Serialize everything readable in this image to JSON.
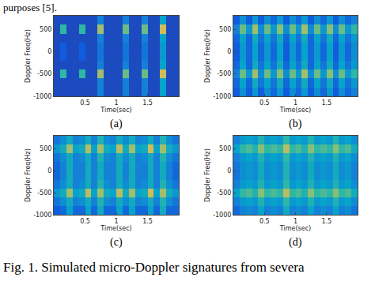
{
  "page": {
    "text_above": "purposes [5].",
    "caption": "Fig. 1. Simulated micro-Doppler signatures from severa"
  },
  "chart_data": [
    {
      "type": "heatmap",
      "title": "(a)",
      "x_label": "Time(sec)",
      "y_label": "Doppler Freq(Hz)",
      "x": [
        0.05,
        0.15,
        0.25,
        0.35,
        0.45,
        0.55,
        0.65,
        0.75,
        0.85,
        0.95,
        1.05,
        1.15,
        1.25,
        1.35,
        1.45,
        1.55,
        1.65,
        1.75,
        1.85,
        1.95
      ],
      "y": [
        -900,
        -700,
        -500,
        -300,
        -100,
        100,
        300,
        500,
        700
      ],
      "z": [
        [
          0.1,
          0.1,
          0.1,
          0.1,
          0.1,
          0.1,
          0.1,
          0.3,
          0.1,
          0.1,
          0.1,
          0.3,
          0.1,
          0.1,
          0.3,
          0.1,
          0.1,
          0.45,
          0.1,
          0.1
        ],
        [
          0.1,
          0.1,
          0.1,
          0.1,
          0.1,
          0.1,
          0.1,
          0.3,
          0.1,
          0.1,
          0.1,
          0.3,
          0.1,
          0.1,
          0.3,
          0.1,
          0.1,
          0.45,
          0.1,
          0.1
        ],
        [
          0.1,
          0.6,
          0.1,
          0.1,
          0.6,
          0.1,
          0.1,
          0.8,
          0.1,
          0.1,
          0.1,
          0.7,
          0.1,
          0.1,
          0.7,
          0.1,
          0.1,
          0.9,
          0.1,
          0.1
        ],
        [
          0.1,
          0.1,
          0.1,
          0.1,
          0.1,
          0.1,
          0.1,
          0.3,
          0.1,
          0.1,
          0.1,
          0.3,
          0.1,
          0.1,
          0.3,
          0.1,
          0.1,
          0.45,
          0.1,
          0.1
        ],
        [
          0.1,
          0.15,
          0.1,
          0.1,
          0.15,
          0.1,
          0.1,
          0.25,
          0.1,
          0.1,
          0.1,
          0.25,
          0.1,
          0.1,
          0.25,
          0.1,
          0.1,
          0.4,
          0.1,
          0.1
        ],
        [
          0.1,
          0.15,
          0.1,
          0.1,
          0.15,
          0.1,
          0.1,
          0.25,
          0.1,
          0.1,
          0.1,
          0.25,
          0.1,
          0.1,
          0.25,
          0.1,
          0.1,
          0.4,
          0.1,
          0.1
        ],
        [
          0.1,
          0.1,
          0.1,
          0.1,
          0.1,
          0.1,
          0.1,
          0.3,
          0.1,
          0.1,
          0.1,
          0.3,
          0.1,
          0.1,
          0.3,
          0.1,
          0.1,
          0.45,
          0.1,
          0.1
        ],
        [
          0.1,
          0.6,
          0.1,
          0.1,
          0.6,
          0.1,
          0.1,
          0.8,
          0.1,
          0.1,
          0.1,
          0.7,
          0.1,
          0.1,
          0.7,
          0.1,
          0.1,
          0.9,
          0.1,
          0.1
        ],
        [
          0.1,
          0.1,
          0.1,
          0.1,
          0.1,
          0.1,
          0.1,
          0.3,
          0.1,
          0.1,
          0.1,
          0.3,
          0.1,
          0.1,
          0.3,
          0.1,
          0.1,
          0.45,
          0.1,
          0.1
        ]
      ],
      "zlim": [
        0,
        1
      ],
      "xlim": [
        0,
        2
      ],
      "ylim": [
        -1000,
        800
      ],
      "xticks": [
        0.5,
        1,
        1.5
      ],
      "yticks": [
        -1000,
        -500,
        0,
        500
      ]
    },
    {
      "type": "heatmap",
      "title": "(b)",
      "x_label": "Time(sec)",
      "y_label": "Doppler Freq(Hz)",
      "x": [
        0.05,
        0.15,
        0.25,
        0.35,
        0.45,
        0.55,
        0.65,
        0.75,
        0.85,
        0.95,
        1.05,
        1.15,
        1.25,
        1.35,
        1.45,
        1.55,
        1.65,
        1.75,
        1.85,
        1.95
      ],
      "y": [
        -900,
        -700,
        -500,
        -300,
        -100,
        100,
        300,
        500,
        700
      ],
      "z": [
        [
          0.15,
          0.35,
          0.15,
          0.4,
          0.15,
          0.35,
          0.2,
          0.4,
          0.15,
          0.35,
          0.2,
          0.4,
          0.15,
          0.35,
          0.2,
          0.4,
          0.15,
          0.35,
          0.2,
          0.3
        ],
        [
          0.2,
          0.45,
          0.2,
          0.5,
          0.25,
          0.45,
          0.25,
          0.5,
          0.2,
          0.45,
          0.25,
          0.5,
          0.2,
          0.45,
          0.25,
          0.5,
          0.2,
          0.45,
          0.25,
          0.4
        ],
        [
          0.3,
          0.7,
          0.4,
          0.8,
          0.35,
          0.7,
          0.4,
          0.75,
          0.35,
          0.7,
          0.4,
          0.8,
          0.35,
          0.7,
          0.4,
          0.75,
          0.35,
          0.7,
          0.4,
          0.6
        ],
        [
          0.2,
          0.45,
          0.2,
          0.5,
          0.25,
          0.45,
          0.25,
          0.5,
          0.2,
          0.45,
          0.25,
          0.5,
          0.2,
          0.45,
          0.25,
          0.5,
          0.2,
          0.45,
          0.25,
          0.4
        ],
        [
          0.15,
          0.4,
          0.2,
          0.45,
          0.2,
          0.4,
          0.2,
          0.45,
          0.15,
          0.4,
          0.2,
          0.45,
          0.2,
          0.4,
          0.2,
          0.45,
          0.15,
          0.4,
          0.2,
          0.35
        ],
        [
          0.15,
          0.4,
          0.2,
          0.45,
          0.2,
          0.4,
          0.2,
          0.45,
          0.15,
          0.4,
          0.2,
          0.45,
          0.2,
          0.4,
          0.2,
          0.45,
          0.15,
          0.4,
          0.2,
          0.35
        ],
        [
          0.2,
          0.45,
          0.2,
          0.5,
          0.25,
          0.45,
          0.25,
          0.5,
          0.2,
          0.45,
          0.25,
          0.5,
          0.2,
          0.45,
          0.25,
          0.5,
          0.2,
          0.45,
          0.25,
          0.4
        ],
        [
          0.3,
          0.7,
          0.4,
          0.8,
          0.35,
          0.7,
          0.4,
          0.75,
          0.35,
          0.7,
          0.4,
          0.8,
          0.35,
          0.7,
          0.4,
          0.75,
          0.35,
          0.7,
          0.4,
          0.6
        ],
        [
          0.15,
          0.35,
          0.15,
          0.4,
          0.15,
          0.35,
          0.2,
          0.4,
          0.15,
          0.35,
          0.2,
          0.4,
          0.15,
          0.35,
          0.2,
          0.4,
          0.15,
          0.35,
          0.2,
          0.3
        ]
      ],
      "zlim": [
        0,
        1
      ],
      "xlim": [
        0,
        2
      ],
      "ylim": [
        -1000,
        800
      ],
      "xticks": [
        0.5,
        1,
        1.5
      ],
      "yticks": [
        -1000,
        -500,
        0,
        500
      ]
    },
    {
      "type": "heatmap",
      "title": "(c)",
      "x_label": "Time(sec)",
      "y_label": "Doppler Freq(Hz)",
      "x": [
        0.05,
        0.15,
        0.25,
        0.35,
        0.45,
        0.55,
        0.65,
        0.75,
        0.85,
        0.95,
        1.05,
        1.15,
        1.25,
        1.35,
        1.45,
        1.55,
        1.65,
        1.75,
        1.85,
        1.95
      ],
      "y": [
        -900,
        -700,
        -500,
        -300,
        -100,
        100,
        300,
        500,
        700
      ],
      "z": [
        [
          0.15,
          0.2,
          0.45,
          0.2,
          0.2,
          0.45,
          0.2,
          0.5,
          0.2,
          0.2,
          0.45,
          0.2,
          0.45,
          0.2,
          0.2,
          0.45,
          0.2,
          0.5,
          0.2,
          0.2
        ],
        [
          0.25,
          0.35,
          0.5,
          0.3,
          0.35,
          0.5,
          0.3,
          0.55,
          0.35,
          0.3,
          0.5,
          0.35,
          0.5,
          0.3,
          0.35,
          0.5,
          0.3,
          0.55,
          0.35,
          0.25
        ],
        [
          0.4,
          0.5,
          0.8,
          0.45,
          0.5,
          0.85,
          0.45,
          0.8,
          0.5,
          0.45,
          0.85,
          0.5,
          0.8,
          0.45,
          0.5,
          0.9,
          0.45,
          0.8,
          0.5,
          0.4
        ],
        [
          0.25,
          0.35,
          0.5,
          0.3,
          0.35,
          0.5,
          0.3,
          0.55,
          0.35,
          0.3,
          0.5,
          0.35,
          0.5,
          0.3,
          0.35,
          0.5,
          0.3,
          0.55,
          0.35,
          0.25
        ],
        [
          0.2,
          0.3,
          0.5,
          0.3,
          0.3,
          0.5,
          0.3,
          0.5,
          0.3,
          0.3,
          0.5,
          0.3,
          0.5,
          0.3,
          0.3,
          0.5,
          0.3,
          0.5,
          0.3,
          0.2
        ],
        [
          0.2,
          0.3,
          0.5,
          0.3,
          0.3,
          0.5,
          0.3,
          0.5,
          0.3,
          0.3,
          0.5,
          0.3,
          0.5,
          0.3,
          0.3,
          0.5,
          0.3,
          0.5,
          0.3,
          0.2
        ],
        [
          0.25,
          0.35,
          0.5,
          0.3,
          0.35,
          0.5,
          0.3,
          0.55,
          0.35,
          0.3,
          0.5,
          0.35,
          0.5,
          0.3,
          0.35,
          0.5,
          0.3,
          0.55,
          0.35,
          0.25
        ],
        [
          0.4,
          0.5,
          0.8,
          0.45,
          0.5,
          0.85,
          0.45,
          0.8,
          0.5,
          0.45,
          0.85,
          0.5,
          0.8,
          0.45,
          0.5,
          0.9,
          0.45,
          0.8,
          0.5,
          0.4
        ],
        [
          0.25,
          0.35,
          0.5,
          0.3,
          0.35,
          0.5,
          0.3,
          0.55,
          0.35,
          0.3,
          0.5,
          0.35,
          0.5,
          0.3,
          0.35,
          0.5,
          0.3,
          0.55,
          0.35,
          0.25
        ]
      ],
      "zlim": [
        0,
        1
      ],
      "xlim": [
        0,
        2
      ],
      "ylim": [
        -1000,
        800
      ],
      "xticks": [
        0.5,
        1,
        1.5
      ],
      "yticks": [
        -1000,
        -500,
        0,
        500
      ]
    },
    {
      "type": "heatmap",
      "title": "(d)",
      "x_label": "Time(sec)",
      "y_label": "Doppler Freq(Hz)",
      "x": [
        0.05,
        0.15,
        0.25,
        0.35,
        0.45,
        0.55,
        0.65,
        0.75,
        0.85,
        0.95,
        1.05,
        1.15,
        1.25,
        1.35,
        1.45,
        1.55,
        1.65,
        1.75,
        1.85,
        1.95
      ],
      "y": [
        -900,
        -700,
        -500,
        -300,
        -100,
        100,
        300,
        500,
        700
      ],
      "z": [
        [
          0.2,
          0.3,
          0.35,
          0.3,
          0.45,
          0.3,
          0.35,
          0.3,
          0.5,
          0.3,
          0.35,
          0.3,
          0.45,
          0.3,
          0.35,
          0.3,
          0.45,
          0.3,
          0.35,
          0.25
        ],
        [
          0.3,
          0.4,
          0.45,
          0.4,
          0.55,
          0.4,
          0.45,
          0.4,
          0.6,
          0.4,
          0.45,
          0.4,
          0.55,
          0.4,
          0.45,
          0.4,
          0.55,
          0.4,
          0.45,
          0.35
        ],
        [
          0.45,
          0.6,
          0.65,
          0.55,
          0.75,
          0.6,
          0.65,
          0.6,
          0.85,
          0.6,
          0.65,
          0.55,
          0.75,
          0.6,
          0.65,
          0.6,
          0.75,
          0.6,
          0.65,
          0.5
        ],
        [
          0.3,
          0.4,
          0.45,
          0.4,
          0.55,
          0.4,
          0.45,
          0.4,
          0.6,
          0.4,
          0.45,
          0.4,
          0.55,
          0.4,
          0.45,
          0.4,
          0.55,
          0.4,
          0.45,
          0.35
        ],
        [
          0.25,
          0.35,
          0.4,
          0.35,
          0.5,
          0.35,
          0.4,
          0.35,
          0.55,
          0.35,
          0.4,
          0.35,
          0.5,
          0.35,
          0.4,
          0.35,
          0.5,
          0.35,
          0.4,
          0.3
        ],
        [
          0.25,
          0.35,
          0.4,
          0.35,
          0.5,
          0.35,
          0.4,
          0.35,
          0.55,
          0.35,
          0.4,
          0.35,
          0.5,
          0.35,
          0.4,
          0.35,
          0.5,
          0.35,
          0.4,
          0.3
        ],
        [
          0.3,
          0.4,
          0.45,
          0.4,
          0.55,
          0.4,
          0.45,
          0.4,
          0.6,
          0.4,
          0.45,
          0.4,
          0.55,
          0.4,
          0.45,
          0.4,
          0.55,
          0.4,
          0.45,
          0.35
        ],
        [
          0.45,
          0.6,
          0.65,
          0.55,
          0.75,
          0.6,
          0.65,
          0.6,
          0.85,
          0.6,
          0.65,
          0.55,
          0.75,
          0.6,
          0.65,
          0.6,
          0.75,
          0.6,
          0.65,
          0.5
        ],
        [
          0.3,
          0.4,
          0.45,
          0.4,
          0.55,
          0.4,
          0.45,
          0.4,
          0.6,
          0.4,
          0.45,
          0.4,
          0.55,
          0.4,
          0.45,
          0.4,
          0.55,
          0.4,
          0.45,
          0.35
        ]
      ],
      "zlim": [
        0,
        1
      ],
      "xlim": [
        0,
        2
      ],
      "ylim": [
        -1000,
        800
      ],
      "xticks": [
        0.5,
        1,
        1.5
      ],
      "yticks": [
        -1000,
        -500,
        0,
        500
      ]
    }
  ]
}
